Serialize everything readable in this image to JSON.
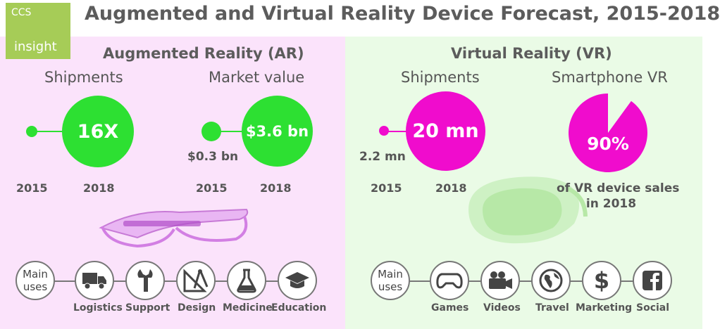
{
  "logo": {
    "top": "CCS",
    "bottom": "insight"
  },
  "title": "Augmented and Virtual Reality Device Forecast, 2015-2018",
  "colors": {
    "ar_accent": "#2de032",
    "vr_accent": "#f00ccd",
    "ar_bg": "#fbe3fb",
    "vr_bg": "#eafbe6",
    "logo": "#a6cc57"
  },
  "ar": {
    "title": "Augmented Reality (AR)",
    "shipments": {
      "label": "Shipments",
      "value": "16X",
      "year_start": "2015",
      "year_end": "2018"
    },
    "market": {
      "label": "Market value",
      "start_value": "$0.3 bn",
      "end_value": "$3.6 bn",
      "year_start": "2015",
      "year_end": "2018"
    },
    "uses": {
      "header_line1": "Main",
      "header_line2": "uses",
      "items": [
        {
          "label": "Logistics",
          "icon": "truck-icon"
        },
        {
          "label": "Support",
          "icon": "wrench-icon"
        },
        {
          "label": "Design",
          "icon": "drafting-tools-icon"
        },
        {
          "label": "Medicine",
          "icon": "flask-icon"
        },
        {
          "label": "Education",
          "icon": "graduation-cap-icon"
        }
      ]
    }
  },
  "vr": {
    "title": "Virtual Reality (VR)",
    "shipments": {
      "label": "Shipments",
      "start_value": "2.2 mn",
      "end_value": "20 mn",
      "year_start": "2015",
      "year_end": "2018"
    },
    "smartphone": {
      "label": "Smartphone VR",
      "value": "90%",
      "share": 0.9,
      "caption_line1": "of VR device sales",
      "caption_line2": "in 2018"
    },
    "uses": {
      "header_line1": "Main",
      "header_line2": "uses",
      "items": [
        {
          "label": "Games",
          "icon": "gamepad-icon"
        },
        {
          "label": "Videos",
          "icon": "video-camera-icon"
        },
        {
          "label": "Travel",
          "icon": "globe-icon"
        },
        {
          "label": "Marketing",
          "icon": "dollar-icon"
        },
        {
          "label": "Social",
          "icon": "facebook-icon"
        }
      ]
    }
  }
}
